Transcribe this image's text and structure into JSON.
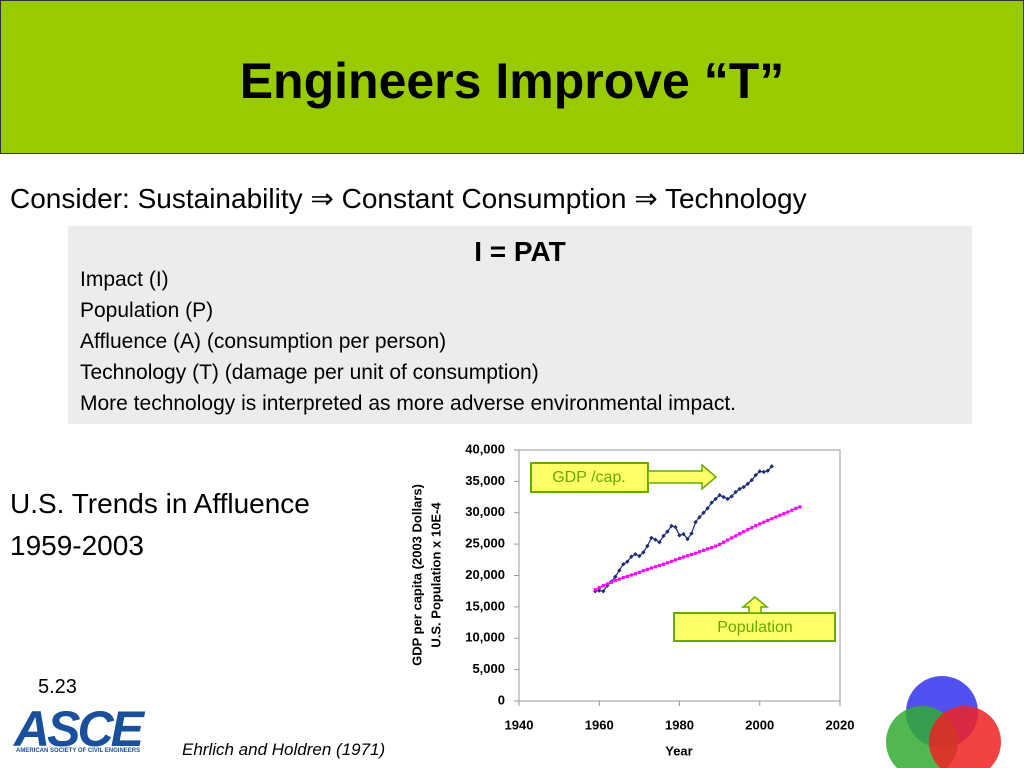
{
  "title": "Engineers Improve “T”",
  "subtitle": "Consider: Sustainability ⇒ Constant Consumption ⇒ Technology",
  "box": {
    "heading": "I = PAT",
    "lines": [
      "Impact (I)",
      "Population (P)",
      "Affluence (A) (consumption per person)",
      "Technology (T) (damage per unit of consumption)",
      "More technology is interpreted as more adverse environmental impact."
    ]
  },
  "side_text": [
    "U.S. Trends in Affluence",
    "1959-2003"
  ],
  "slide_number": "5.23",
  "logo": {
    "name": "ASCE",
    "subtitle": "AMERICAN SOCIETY OF CIVIL ENGINEERS"
  },
  "citation": "Ehrlich and Holdren (1971)",
  "chart_data": {
    "type": "line",
    "y_label": [
      "GDP per capita (2003 Dollars)",
      "U.S. Population x 10E-4"
    ],
    "x_label": "Year",
    "xlim": [
      1940,
      2020
    ],
    "xticks": [
      1940,
      1960,
      1980,
      2000,
      2020
    ],
    "ylim": [
      0,
      40000
    ],
    "yticks": [
      0,
      {
        "value": 5000,
        "label": "5,000"
      },
      {
        "value": 10000,
        "label": "10,000"
      },
      {
        "value": 15000,
        "label": "15,000"
      },
      {
        "value": 20000,
        "label": "20,000"
      },
      {
        "value": 25000,
        "label": "25,000"
      },
      {
        "value": 30000,
        "label": "30,000"
      },
      {
        "value": 35000,
        "label": "35,000"
      },
      {
        "value": 40000,
        "label": "40,000"
      }
    ],
    "grid": false,
    "series": [
      {
        "name": "GDP /cap.",
        "color": "#1f2d7a",
        "x": [
          1959,
          1960,
          1961,
          1962,
          1963,
          1964,
          1965,
          1966,
          1967,
          1968,
          1969,
          1970,
          1971,
          1972,
          1973,
          1974,
          1975,
          1976,
          1977,
          1978,
          1979,
          1980,
          1981,
          1982,
          1983,
          1984,
          1985,
          1986,
          1987,
          1988,
          1989,
          1990,
          1991,
          1992,
          1993,
          1994,
          1995,
          1996,
          1997,
          1998,
          1999,
          2000,
          2001,
          2002,
          2003
        ],
        "values": [
          17500,
          17600,
          17500,
          18400,
          19000,
          19800,
          20800,
          21800,
          22200,
          23000,
          23400,
          23100,
          23700,
          24700,
          26000,
          25700,
          25300,
          26300,
          27000,
          27900,
          27700,
          26400,
          26600,
          25800,
          26700,
          28500,
          29300,
          30000,
          30700,
          31600,
          32200,
          32800,
          32500,
          32200,
          32600,
          33300,
          33800,
          34100,
          34600,
          35200,
          36000,
          36600,
          36500,
          36700,
          37400
        ]
      },
      {
        "name": "Population",
        "color": "#ff00ff",
        "x": [
          1959,
          1960,
          1961,
          1962,
          1963,
          1964,
          1965,
          1966,
          1967,
          1968,
          1969,
          1970,
          1971,
          1972,
          1973,
          1974,
          1975,
          1976,
          1977,
          1978,
          1979,
          1980,
          1981,
          1982,
          1983,
          1984,
          1985,
          1986,
          1987,
          1988,
          1989,
          1990,
          1991,
          1992,
          1993,
          1994,
          1995,
          1996,
          1997,
          1998,
          1999,
          2000,
          2001,
          2002,
          2003,
          2004,
          2005,
          2006,
          2007,
          2008,
          2009,
          2010
        ],
        "values": [
          17730,
          18067,
          18369,
          18654,
          18924,
          19189,
          19430,
          19656,
          19860,
          20071,
          20268,
          20505,
          20766,
          20990,
          21191,
          21386,
          21597,
          21804,
          22024,
          22259,
          22506,
          22722,
          22937,
          23149,
          23352,
          23550,
          23793,
          24013,
          24243,
          24450,
          24679,
          24962,
          25298,
          25651,
          25992,
          26308,
          26665,
          26977,
          27297,
          27611,
          27928,
          28218,
          28497,
          28776,
          29051,
          29320,
          29599,
          29838,
          30116,
          30409,
          30700,
          30935
        ]
      }
    ]
  }
}
